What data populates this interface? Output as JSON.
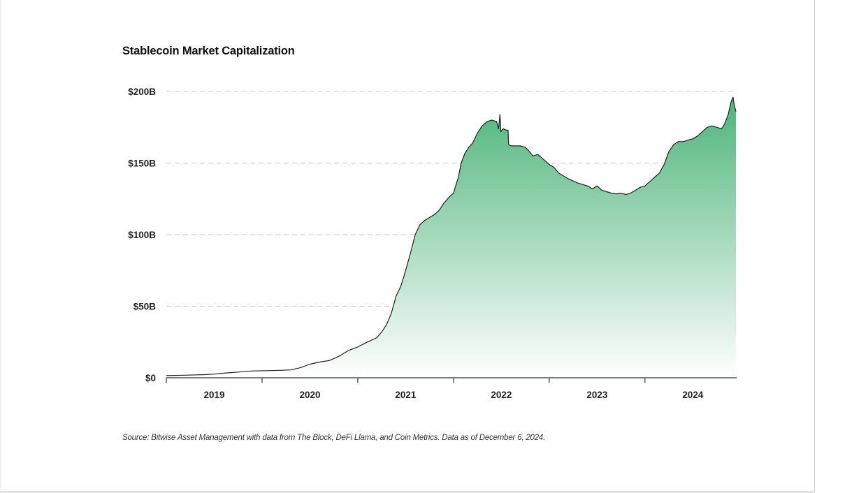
{
  "chart_data": {
    "type": "area",
    "title": "Stablecoin Market Capitalization",
    "xlabel": "",
    "ylabel": "",
    "y_ticks": [
      {
        "value": 0,
        "label": "$0"
      },
      {
        "value": 50,
        "label": "$50B"
      },
      {
        "value": 100,
        "label": "$100B"
      },
      {
        "value": 150,
        "label": "$150B"
      },
      {
        "value": 200,
        "label": "$200B"
      }
    ],
    "x_ticks": [
      {
        "value": 2019.0,
        "label": "2019"
      },
      {
        "value": 2020.0,
        "label": "2020"
      },
      {
        "value": 2021.0,
        "label": "2021"
      },
      {
        "value": 2022.0,
        "label": "2022"
      },
      {
        "value": 2023.0,
        "label": "2023"
      },
      {
        "value": 2024.0,
        "label": "2024"
      }
    ],
    "x_tick_marks": [
      2018.5,
      2019.5,
      2020.5,
      2021.5,
      2022.5,
      2023.5
    ],
    "xlim": [
      2018.5,
      2024.45
    ],
    "ylim": [
      0,
      200
    ],
    "grid": true,
    "legend": "none",
    "fill_color_top": "#4db47a",
    "fill_color_bottom": "#ffffff",
    "line_color": "#1f1f1f",
    "series": [
      {
        "name": "Stablecoin market cap ($B)",
        "points": [
          [
            2018.5,
            1.5
          ],
          [
            2018.7,
            1.8
          ],
          [
            2018.9,
            2.2
          ],
          [
            2019.0,
            2.6
          ],
          [
            2019.1,
            3.2
          ],
          [
            2019.25,
            4.0
          ],
          [
            2019.4,
            4.8
          ],
          [
            2019.55,
            5.0
          ],
          [
            2019.7,
            5.2
          ],
          [
            2019.8,
            5.5
          ],
          [
            2019.9,
            7.0
          ],
          [
            2020.0,
            9.5
          ],
          [
            2020.1,
            11.0
          ],
          [
            2020.2,
            12.0
          ],
          [
            2020.3,
            15.0
          ],
          [
            2020.4,
            19.0
          ],
          [
            2020.5,
            21.5
          ],
          [
            2020.6,
            25.0
          ],
          [
            2020.7,
            28.0
          ],
          [
            2020.75,
            32.0
          ],
          [
            2020.8,
            37.0
          ],
          [
            2020.85,
            45.0
          ],
          [
            2020.9,
            57.0
          ],
          [
            2020.95,
            64.0
          ],
          [
            2021.0,
            75.0
          ],
          [
            2021.05,
            87.0
          ],
          [
            2021.1,
            100.0
          ],
          [
            2021.15,
            107.0
          ],
          [
            2021.2,
            110.0
          ],
          [
            2021.25,
            112.0
          ],
          [
            2021.3,
            114.0
          ],
          [
            2021.35,
            117.0
          ],
          [
            2021.4,
            122.0
          ],
          [
            2021.45,
            126.0
          ],
          [
            2021.5,
            129.0
          ],
          [
            2021.55,
            140.0
          ],
          [
            2021.58,
            150.0
          ],
          [
            2021.62,
            157.0
          ],
          [
            2021.66,
            161.0
          ],
          [
            2021.7,
            164.0
          ],
          [
            2021.75,
            171.0
          ],
          [
            2021.8,
            176.0
          ],
          [
            2021.85,
            179.0
          ],
          [
            2021.9,
            180.0
          ],
          [
            2021.95,
            179.0
          ],
          [
            2021.97,
            174.0
          ],
          [
            2021.985,
            184.0
          ],
          [
            2021.995,
            172.0
          ],
          [
            2022.02,
            174.0
          ],
          [
            2022.05,
            173.0
          ],
          [
            2022.07,
            173.0
          ],
          [
            2022.075,
            163.0
          ],
          [
            2022.1,
            162.0
          ],
          [
            2022.2,
            162.0
          ],
          [
            2022.25,
            161.0
          ],
          [
            2022.28,
            159.0
          ],
          [
            2022.33,
            155.0
          ],
          [
            2022.38,
            156.0
          ],
          [
            2022.45,
            152.0
          ],
          [
            2022.5,
            149.0
          ],
          [
            2022.55,
            147.0
          ],
          [
            2022.6,
            143.0
          ],
          [
            2022.7,
            139.0
          ],
          [
            2022.8,
            136.0
          ],
          [
            2022.9,
            134.0
          ],
          [
            2022.95,
            132.0
          ],
          [
            2023.0,
            134.0
          ],
          [
            2023.05,
            131.0
          ],
          [
            2023.1,
            130.0
          ],
          [
            2023.15,
            129.0
          ],
          [
            2023.2,
            128.5
          ],
          [
            2023.25,
            129.0
          ],
          [
            2023.3,
            128.0
          ],
          [
            2023.35,
            129.0
          ],
          [
            2023.4,
            131.0
          ],
          [
            2023.45,
            133.0
          ],
          [
            2023.5,
            134.0
          ],
          [
            2023.55,
            137.0
          ],
          [
            2023.6,
            140.0
          ],
          [
            2023.65,
            143.0
          ],
          [
            2023.7,
            149.0
          ],
          [
            2023.75,
            158.0
          ],
          [
            2023.8,
            163.0
          ],
          [
            2023.85,
            165.0
          ],
          [
            2023.9,
            165.0
          ],
          [
            2023.95,
            166.0
          ],
          [
            2024.0,
            167.0
          ],
          [
            2024.05,
            169.0
          ],
          [
            2024.1,
            172.0
          ],
          [
            2024.15,
            175.0
          ],
          [
            2024.2,
            176.0
          ],
          [
            2024.25,
            175.0
          ],
          [
            2024.3,
            174.0
          ],
          [
            2024.33,
            177.0
          ],
          [
            2024.37,
            184.0
          ],
          [
            2024.4,
            193.0
          ],
          [
            2024.42,
            196.0
          ],
          [
            2024.435,
            190.0
          ],
          [
            2024.45,
            186.0
          ]
        ]
      }
    ]
  },
  "source_note": "Source: Bitwise Asset Management with data from The Block, DeFi Llama, and Coin Metrics. Data as of December 6, 2024.",
  "colors": {
    "grid": "#c8c8c8",
    "axis": "#333333",
    "text": "#222222"
  }
}
